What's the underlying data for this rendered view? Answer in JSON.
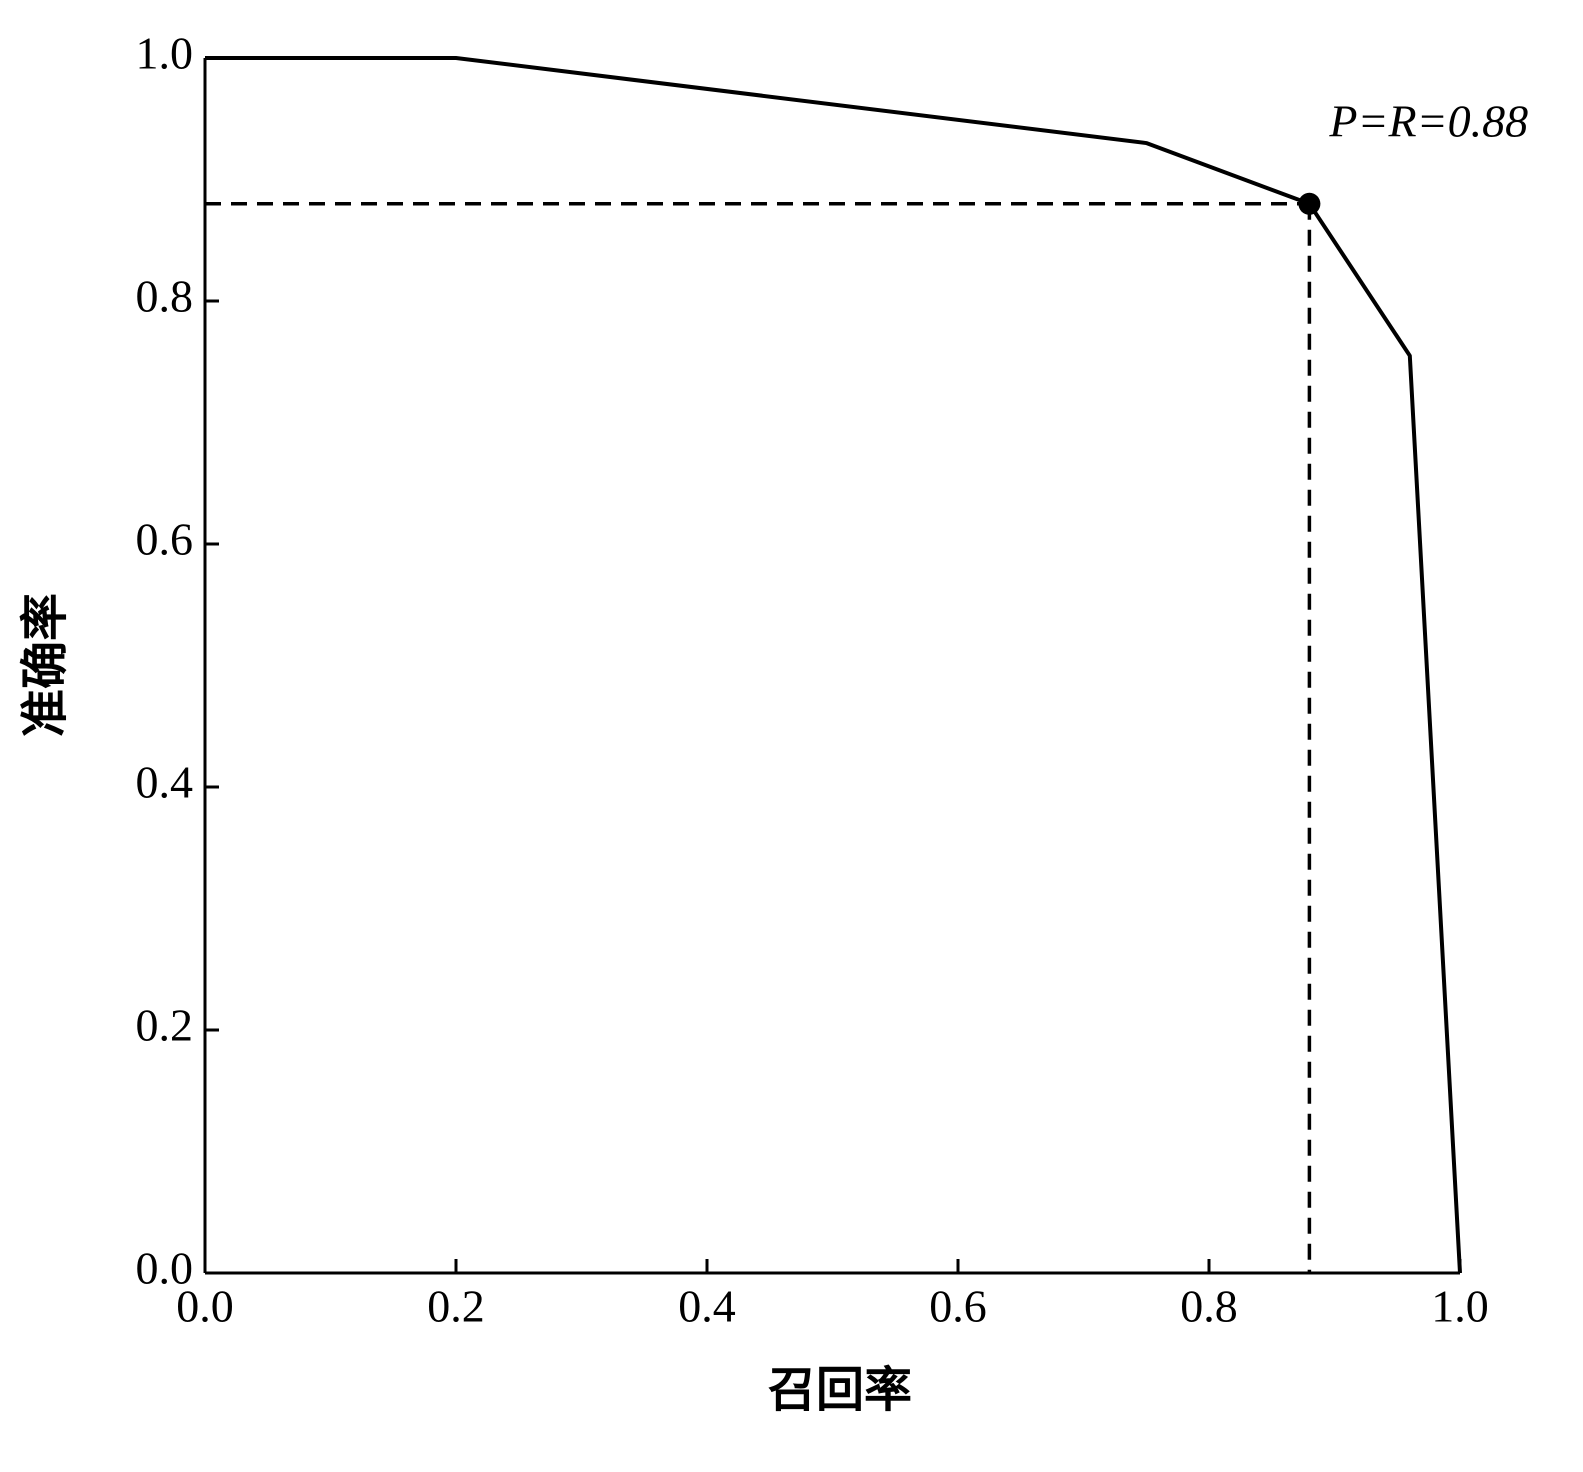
{
  "chart_data": {
    "type": "line",
    "xlabel": "召回率",
    "ylabel": "准确率",
    "x": [
      0,
      0.2,
      0.75,
      0.88,
      0.96,
      1.0
    ],
    "series": [
      {
        "color": "#000000",
        "values": [
          1.0,
          1.0,
          0.93,
          0.88,
          0.755,
          0.0
        ]
      }
    ],
    "marker": {
      "x": 0.88,
      "y": 0.88,
      "label": "P=R=0.88"
    },
    "xlim": [
      0,
      1.0
    ],
    "ylim": [
      0,
      1.0
    ],
    "xticks": [
      {
        "value": 0,
        "label": "0.0"
      },
      {
        "value": 0.2,
        "label": "0.2"
      },
      {
        "value": 0.4,
        "label": "0.4"
      },
      {
        "value": 0.6,
        "label": "0.6"
      },
      {
        "value": 0.8,
        "label": "0.8"
      },
      {
        "value": 1.0,
        "label": "1.0"
      }
    ],
    "yticks": [
      {
        "value": 0,
        "label": "0.0"
      },
      {
        "value": 0.2,
        "label": "0.2"
      },
      {
        "value": 0.4,
        "label": "0.4"
      },
      {
        "value": 0.6,
        "label": "0.6"
      },
      {
        "value": 0.8,
        "label": "0.8"
      },
      {
        "value": 1.0,
        "label": "1.0"
      }
    ],
    "grid": false
  }
}
